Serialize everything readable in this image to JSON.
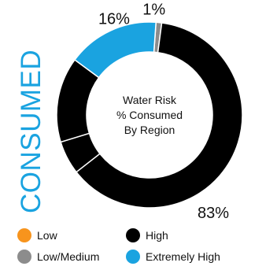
{
  "side_title": "CONSUMED",
  "colors": {
    "accent": "#1aa3e0",
    "low": "#f7941d",
    "low_medium": "#8c8c8c",
    "high": "#000000",
    "extremely_high": "#1aa3e0"
  },
  "chart_data": {
    "type": "donut",
    "title": "",
    "center_text": [
      "Water Risk",
      "% Consumed",
      "By Region"
    ],
    "series": [
      {
        "values": [
          0,
          1,
          83,
          16
        ],
        "labels": [
          "Low",
          "Low/Medium",
          "High",
          "Extremely High"
        ],
        "colors": [
          "#f7941d",
          "#8c8c8c",
          "#000000",
          "#1aa3e0"
        ]
      }
    ],
    "data_labels": [
      {
        "category": "Low/Medium",
        "text": "1%"
      },
      {
        "category": "Extremely High",
        "text": "16%"
      },
      {
        "category": "High",
        "text": "83%"
      }
    ],
    "legend": {
      "placement": "bottom",
      "items": [
        {
          "label": "Low",
          "color": "#f7941d"
        },
        {
          "label": "High",
          "color": "#000000"
        },
        {
          "label": "Low/Medium",
          "color": "#8c8c8c"
        },
        {
          "label": "Extremely High",
          "color": "#1aa3e0"
        }
      ]
    }
  }
}
